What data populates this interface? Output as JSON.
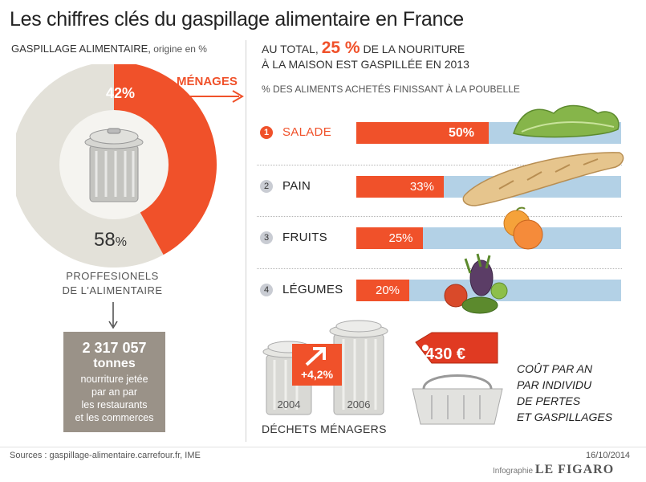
{
  "title": "Les chiffres clés du gaspillage alimentaire en France",
  "left": {
    "subtitle": "GASPILLAGE ALIMENTAIRE,",
    "unit": " origine en %",
    "menages_label": "MÉNAGES",
    "pct_menages": "42%",
    "pct_pro_num": "58",
    "pct_pro_sign": "%",
    "pro_label_1": "PROFFESIONELS",
    "pro_label_2": "DE L'ALIMENTAIRE",
    "tonnage": "2 317 057",
    "tonnage_unit": "tonnes",
    "tonnage_desc": [
      "nourriture jetée",
      "par an par",
      "les restaurants",
      "et les commerces"
    ]
  },
  "right": {
    "head_prefix": "AU TOTAL,",
    "head_big": "25 %",
    "head_suffix": " DE LA NOURITURE",
    "head_line2": "À LA MAISON EST GASPILLÉE EN 2013",
    "subhead": "% DES ALIMENTS ACHETÉS FINISSANT À LA POUBELLE"
  },
  "chart_data": [
    {
      "type": "pie",
      "title": "",
      "labels": [
        "MÉNAGES",
        "PROFFESIONELS DE L'ALIMENTAIRE"
      ],
      "values": [
        42,
        58
      ],
      "colors": [
        "#f0512a",
        "#e3e1d9"
      ]
    },
    {
      "type": "bar",
      "orientation": "horizontal",
      "title": "",
      "categories": [
        "SALADE",
        "PAIN",
        "FRUITS",
        "LÉGUMES"
      ],
      "ranks": [
        "1",
        "2",
        "3",
        "4"
      ],
      "values": [
        50,
        33,
        25,
        20
      ],
      "value_labels": [
        "50%",
        "33%",
        "25%",
        "20%"
      ],
      "xlim": [
        0,
        100
      ],
      "colors": {
        "fill": "#f0512a",
        "background": "#b3d1e6"
      }
    }
  ],
  "bottom": {
    "badge_pct": "+4,2%",
    "year_1": "2004",
    "year_2": "2006",
    "dechets_label": "DÉCHETS MÉNAGERS",
    "price": "430 €",
    "cout_lines": [
      "COÛT PAR AN",
      "PAR INDIVIDU",
      "DE PERTES",
      "ET GASPILLAGES"
    ]
  },
  "footer": {
    "sources": "Sources : gaspillage-alimentaire.carrefour.fr, IME",
    "date": "16/10/2014",
    "credit_prefix": "Infographie",
    "credit_brand": "LE FIGARO"
  },
  "colors": {
    "accent": "#f0512a",
    "blue": "#b3d1e6",
    "grey": "#9a9288"
  }
}
